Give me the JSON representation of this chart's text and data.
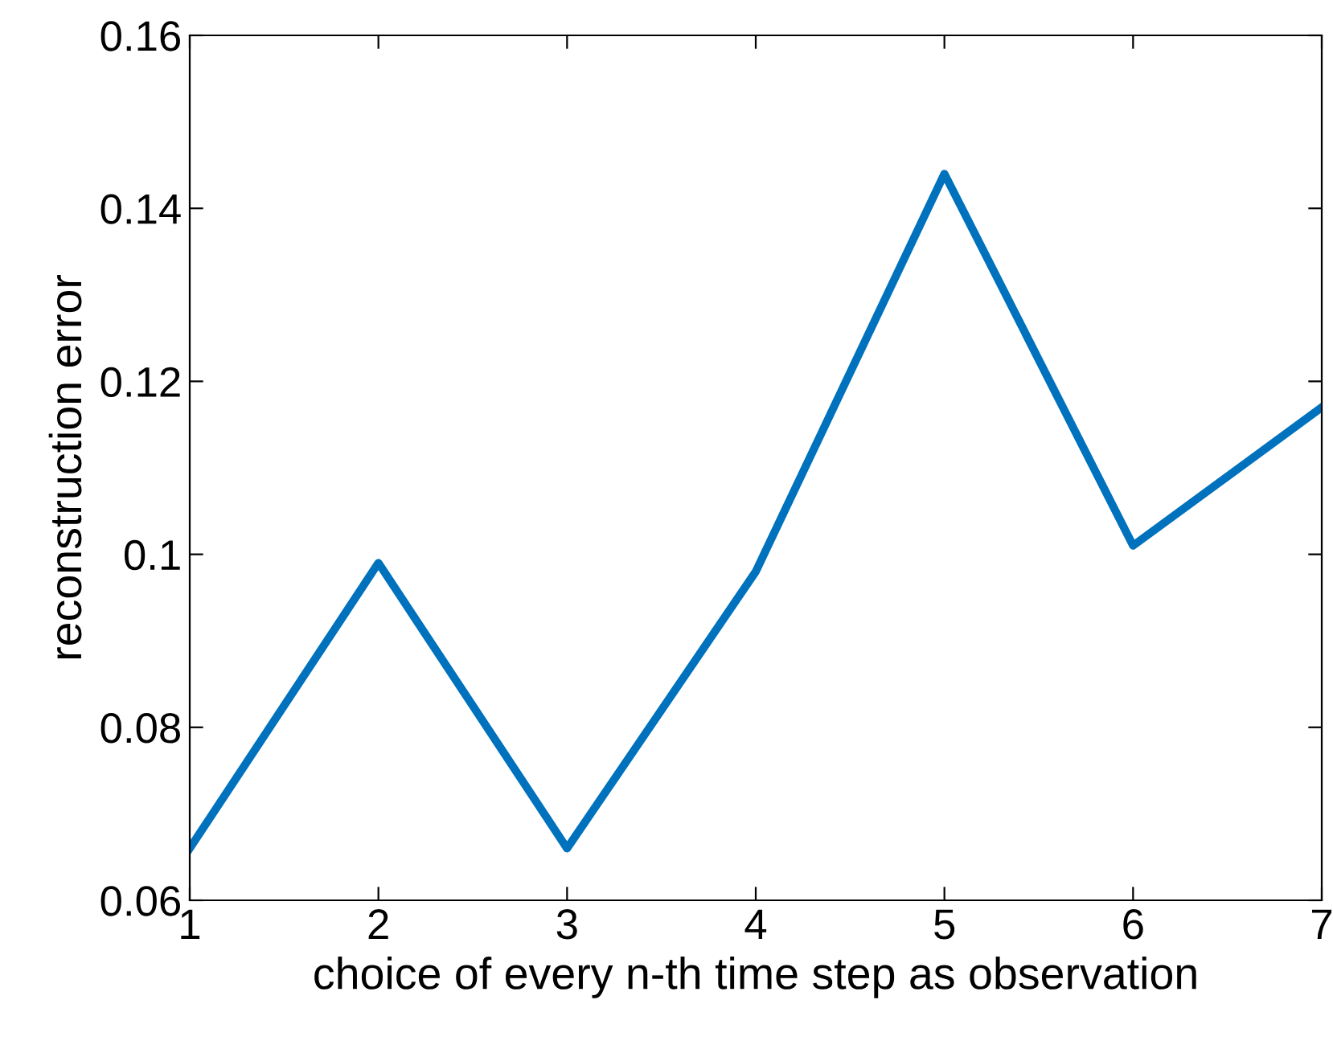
{
  "chart_data": {
    "type": "line",
    "xlabel": "choice of every n-th time step as observation",
    "ylabel": "reconstruction error",
    "x": [
      1,
      2,
      3,
      4,
      5,
      6,
      7
    ],
    "series": [
      {
        "color": "#0072bd",
        "values": [
          0.066,
          0.099,
          0.066,
          0.098,
          0.144,
          0.101,
          0.117
        ]
      }
    ],
    "xlim": [
      1,
      7
    ],
    "xticks": [
      1,
      2,
      3,
      4,
      5,
      6,
      7
    ],
    "ylim": [
      0.06,
      0.16
    ],
    "yticks": [
      0.06,
      0.08,
      {
        "value": 0.1,
        "label": "0.1"
      },
      0.12,
      0.14,
      0.16
    ],
    "grid": false,
    "legend": false,
    "marker": "none",
    "line_style": "solid"
  }
}
